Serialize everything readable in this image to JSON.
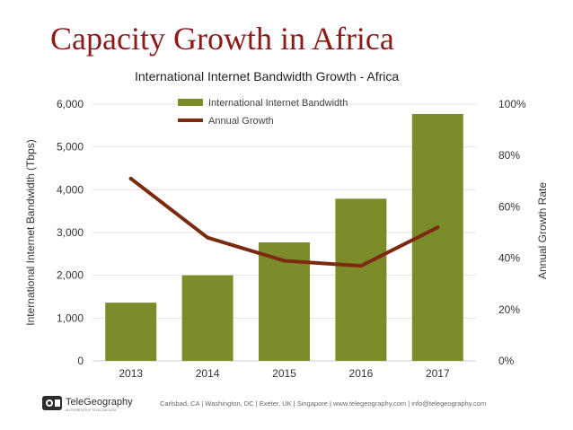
{
  "slide": {
    "title": "Capacity Growth in Africa",
    "footer_text": "Carlsbad, CA | Washington, DC | Exeter, UK | Singapore | www.telegeography.com | info@telegeography.com",
    "logo_name": "TeleGeography",
    "logo_tagline": "AUTHORITATIVE TELECOM DATA"
  },
  "chart_data": {
    "type": "bar",
    "title": "International Internet Bandwidth Growth - Africa",
    "categories": [
      "2013",
      "2014",
      "2015",
      "2016",
      "2017"
    ],
    "series": [
      {
        "name": "International Internet Bandwidth",
        "type": "bar",
        "axis": "left",
        "color": "#7d8c2b",
        "values": [
          1360,
          2000,
          2770,
          3790,
          5770
        ]
      },
      {
        "name": "Annual Growth",
        "type": "line",
        "axis": "right",
        "color": "#7a2a10",
        "values": [
          71,
          48,
          39,
          37,
          52
        ]
      }
    ],
    "ylabel": "International Internet Bandwidth (Tbps)",
    "y2label": "Annual Growth Rate",
    "ylim": [
      0,
      6000
    ],
    "y2lim": [
      0,
      100
    ],
    "yticks": [
      "0",
      "1,000",
      "2,000",
      "3,000",
      "4,000",
      "5,000",
      "6,000"
    ],
    "y2ticks": [
      "0%",
      "20%",
      "40%",
      "60%",
      "80%",
      "100%"
    ],
    "grid": true,
    "legend": "top-center"
  }
}
